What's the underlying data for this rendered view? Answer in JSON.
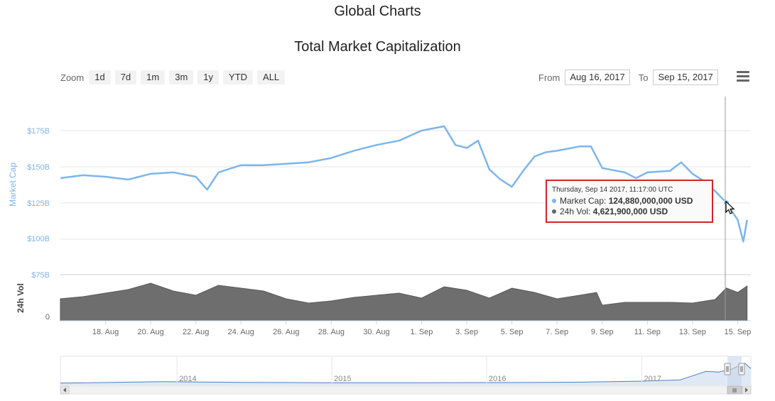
{
  "header": {
    "page_title": "Global Charts",
    "chart_title": "Total Market Capitalization"
  },
  "toolbar": {
    "zoom_label": "Zoom",
    "zoom_buttons": [
      "1d",
      "7d",
      "1m",
      "3m",
      "1y",
      "YTD",
      "ALL"
    ],
    "from_label": "From",
    "from_value": "Aug 16, 2017",
    "to_label": "To",
    "to_value": "Sep 15, 2017",
    "menu_icon": "hamburger-menu-icon"
  },
  "tooltip": {
    "date": "Thursday, Sep 14 2017, 11:17:00 UTC",
    "market_cap_label": "Market Cap:",
    "market_cap_value": "124,880,000,000 USD",
    "volume_label": "24h Vol:",
    "volume_value": "4,621,900,000 USD"
  },
  "colors": {
    "market_cap": "#7cb5ec",
    "volume": "#6e6e6e",
    "tooltip_border": "#d0262b",
    "navigator_mask": "#c5d3ea"
  },
  "chart_data": {
    "type": "area",
    "title": "Total Market Capitalization",
    "x_tick_labels": [
      "18. Aug",
      "20. Aug",
      "22. Aug",
      "24. Aug",
      "26. Aug",
      "28. Aug",
      "30. Aug",
      "1. Sep",
      "3. Sep",
      "5. Sep",
      "7. Sep",
      "9. Sep",
      "11. Sep",
      "13. Sep",
      "15. Sep"
    ],
    "x_range": [
      "2017-08-16",
      "2017-09-15"
    ],
    "market_cap": {
      "ylabel": "Market Cap",
      "ticks": [
        "$75B",
        "$100B",
        "$125B",
        "$150B",
        "$175B"
      ],
      "ylim": [
        75,
        175
      ],
      "unit": "B USD",
      "points": [
        [
          "2017-08-16",
          142
        ],
        [
          "2017-08-17",
          144
        ],
        [
          "2017-08-18",
          143
        ],
        [
          "2017-08-19",
          141
        ],
        [
          "2017-08-20",
          145
        ],
        [
          "2017-08-21",
          146
        ],
        [
          "2017-08-22",
          143
        ],
        [
          "2017-08-22T12",
          134
        ],
        [
          "2017-08-23",
          146
        ],
        [
          "2017-08-24",
          151
        ],
        [
          "2017-08-25",
          151
        ],
        [
          "2017-08-26",
          152
        ],
        [
          "2017-08-27",
          153
        ],
        [
          "2017-08-28",
          156
        ],
        [
          "2017-08-29",
          161
        ],
        [
          "2017-08-30",
          165
        ],
        [
          "2017-08-31",
          168
        ],
        [
          "2017-09-01",
          175
        ],
        [
          "2017-09-02",
          178
        ],
        [
          "2017-09-02T12",
          165
        ],
        [
          "2017-09-03",
          163
        ],
        [
          "2017-09-03T12",
          168
        ],
        [
          "2017-09-04",
          148
        ],
        [
          "2017-09-04T12",
          141
        ],
        [
          "2017-09-05",
          136
        ],
        [
          "2017-09-05T12",
          147
        ],
        [
          "2017-09-06",
          157
        ],
        [
          "2017-09-06T12",
          160
        ],
        [
          "2017-09-07",
          161
        ],
        [
          "2017-09-08",
          164
        ],
        [
          "2017-09-08T12",
          164
        ],
        [
          "2017-09-09",
          149
        ],
        [
          "2017-09-10",
          146
        ],
        [
          "2017-09-10T12",
          142
        ],
        [
          "2017-09-11",
          146
        ],
        [
          "2017-09-12",
          147
        ],
        [
          "2017-09-12T12",
          153
        ],
        [
          "2017-09-13",
          145
        ],
        [
          "2017-09-13T12",
          140
        ],
        [
          "2017-09-14",
          133
        ],
        [
          "2017-09-14T12",
          124.88
        ],
        [
          "2017-09-15",
          113
        ],
        [
          "2017-09-15T06",
          98
        ],
        [
          "2017-09-15T10",
          113
        ]
      ]
    },
    "volume": {
      "ylabel": "24h Vol",
      "ticks": [
        "0"
      ],
      "unit": "B USD",
      "points": [
        [
          "2017-08-16",
          3.1
        ],
        [
          "2017-08-17",
          3.4
        ],
        [
          "2017-08-18",
          3.9
        ],
        [
          "2017-08-19",
          4.4
        ],
        [
          "2017-08-20",
          5.3
        ],
        [
          "2017-08-21",
          4.2
        ],
        [
          "2017-08-22",
          3.6
        ],
        [
          "2017-08-23",
          5.0
        ],
        [
          "2017-08-24",
          4.6
        ],
        [
          "2017-08-25",
          4.2
        ],
        [
          "2017-08-26",
          3.1
        ],
        [
          "2017-08-27",
          2.5
        ],
        [
          "2017-08-28",
          2.8
        ],
        [
          "2017-08-29",
          3.3
        ],
        [
          "2017-08-30",
          3.6
        ],
        [
          "2017-08-31",
          3.9
        ],
        [
          "2017-09-01",
          3.2
        ],
        [
          "2017-09-02",
          4.8
        ],
        [
          "2017-09-03",
          4.3
        ],
        [
          "2017-09-04",
          3.2
        ],
        [
          "2017-09-05",
          4.6
        ],
        [
          "2017-09-06",
          4.0
        ],
        [
          "2017-09-07",
          3.1
        ],
        [
          "2017-09-08",
          3.6
        ],
        [
          "2017-09-08T18",
          4.0
        ],
        [
          "2017-09-09",
          2.2
        ],
        [
          "2017-09-10",
          2.6
        ],
        [
          "2017-09-11",
          2.6
        ],
        [
          "2017-09-12",
          2.6
        ],
        [
          "2017-09-13",
          2.5
        ],
        [
          "2017-09-14",
          3.0
        ],
        [
          "2017-09-14T12",
          4.62
        ],
        [
          "2017-09-15",
          4.0
        ],
        [
          "2017-09-15T10",
          4.9
        ]
      ]
    },
    "navigator": {
      "year_labels": [
        "2014",
        "2015",
        "2016",
        "2017"
      ],
      "points": [
        [
          "2013-04",
          1.5
        ],
        [
          "2013-12",
          13
        ],
        [
          "2014-06",
          8
        ],
        [
          "2015-01",
          5
        ],
        [
          "2015-08",
          4
        ],
        [
          "2016-02",
          6
        ],
        [
          "2016-08",
          9
        ],
        [
          "2017-01",
          18
        ],
        [
          "2017-04",
          28
        ],
        [
          "2017-06",
          100
        ],
        [
          "2017-07",
          95
        ],
        [
          "2017-08",
          120
        ],
        [
          "2017-09",
          170
        ],
        [
          "2017-09-15",
          125
        ]
      ]
    }
  }
}
